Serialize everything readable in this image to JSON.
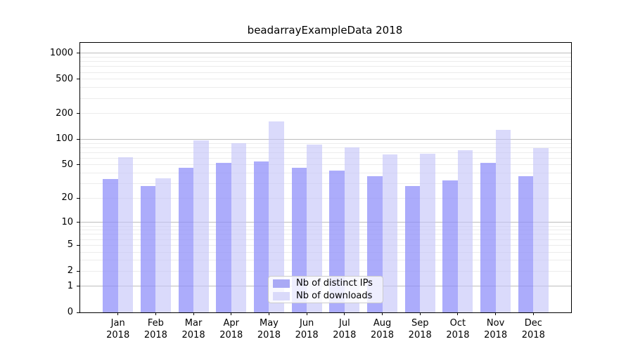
{
  "title": "beadarrayExampleData 2018",
  "chart_data": {
    "type": "bar",
    "title": "beadarrayExampleData 2018",
    "xlabel": "",
    "ylabel": "",
    "scale": "log10(1+y)",
    "ylim": [
      0,
      1325
    ],
    "categories": [
      "Jan",
      "Feb",
      "Mar",
      "Apr",
      "May",
      "Jun",
      "Jul",
      "Aug",
      "Sep",
      "Oct",
      "Nov",
      "Dec"
    ],
    "category_year": "2018",
    "series": [
      {
        "name": "Nb of distinct IPs",
        "color": "#a9a9f5",
        "fill_rgba": "rgba(140,140,250,0.72)",
        "values": [
          34,
          28,
          46,
          53,
          55,
          46,
          43,
          37,
          28,
          33,
          53,
          37
        ]
      },
      {
        "name": "Nb of downloads",
        "color": "#dadafa",
        "fill_rgba": "rgba(195,195,248,0.62)",
        "values": [
          62,
          35,
          97,
          90,
          163,
          86,
          80,
          67,
          68,
          75,
          130,
          79
        ]
      }
    ],
    "y_ticks": [
      0,
      1,
      2,
      5,
      10,
      20,
      50,
      100,
      200,
      500,
      1000
    ],
    "grid_major": [
      1,
      10,
      100,
      1000
    ],
    "grid_minor": [
      2,
      3,
      4,
      5,
      6,
      7,
      8,
      9,
      20,
      30,
      40,
      50,
      60,
      70,
      80,
      90,
      200,
      300,
      400,
      500,
      600,
      700,
      800,
      900
    ],
    "grid": true,
    "legend_position": "lower center"
  }
}
